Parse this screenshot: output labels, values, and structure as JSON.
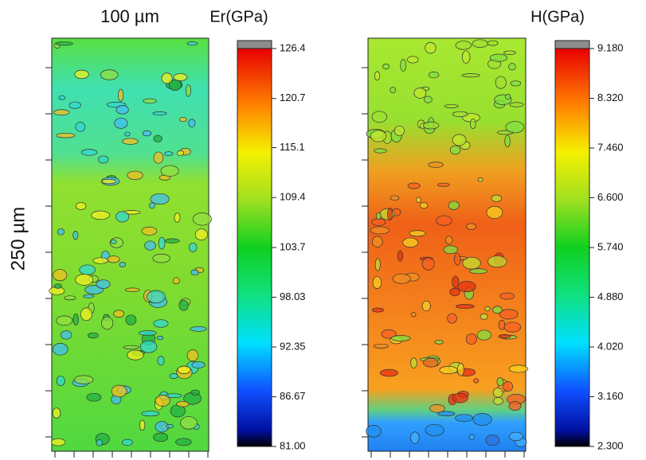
{
  "chart_data": [
    {
      "type": "heatmap",
      "title": "Er(GPa)",
      "xlabel": "100 µm",
      "ylabel": "250 µm",
      "ylim": [
        81,
        126.4
      ],
      "yticks": [
        {
          "value": 81,
          "label": "81.00"
        },
        86.67,
        92.35,
        98.03,
        103.7,
        109.4,
        115.1,
        120.7,
        126.4
      ]
    },
    {
      "type": "heatmap",
      "title": "H(GPa)",
      "ylim": [
        2.3,
        9.18
      ],
      "yticks": [
        {
          "value": 2.3,
          "label": "2.300"
        },
        {
          "value": 3.16,
          "label": "3.160"
        },
        {
          "value": 4.02,
          "label": "4.020"
        },
        {
          "value": 4.88,
          "label": "4.880"
        },
        {
          "value": 5.74,
          "label": "5.740"
        },
        {
          "value": 6.6,
          "label": "6.600"
        },
        {
          "value": 7.46,
          "label": "7.460"
        },
        {
          "value": 8.32,
          "label": "8.320"
        },
        {
          "value": 9.18,
          "label": "9.180"
        }
      ]
    }
  ]
}
